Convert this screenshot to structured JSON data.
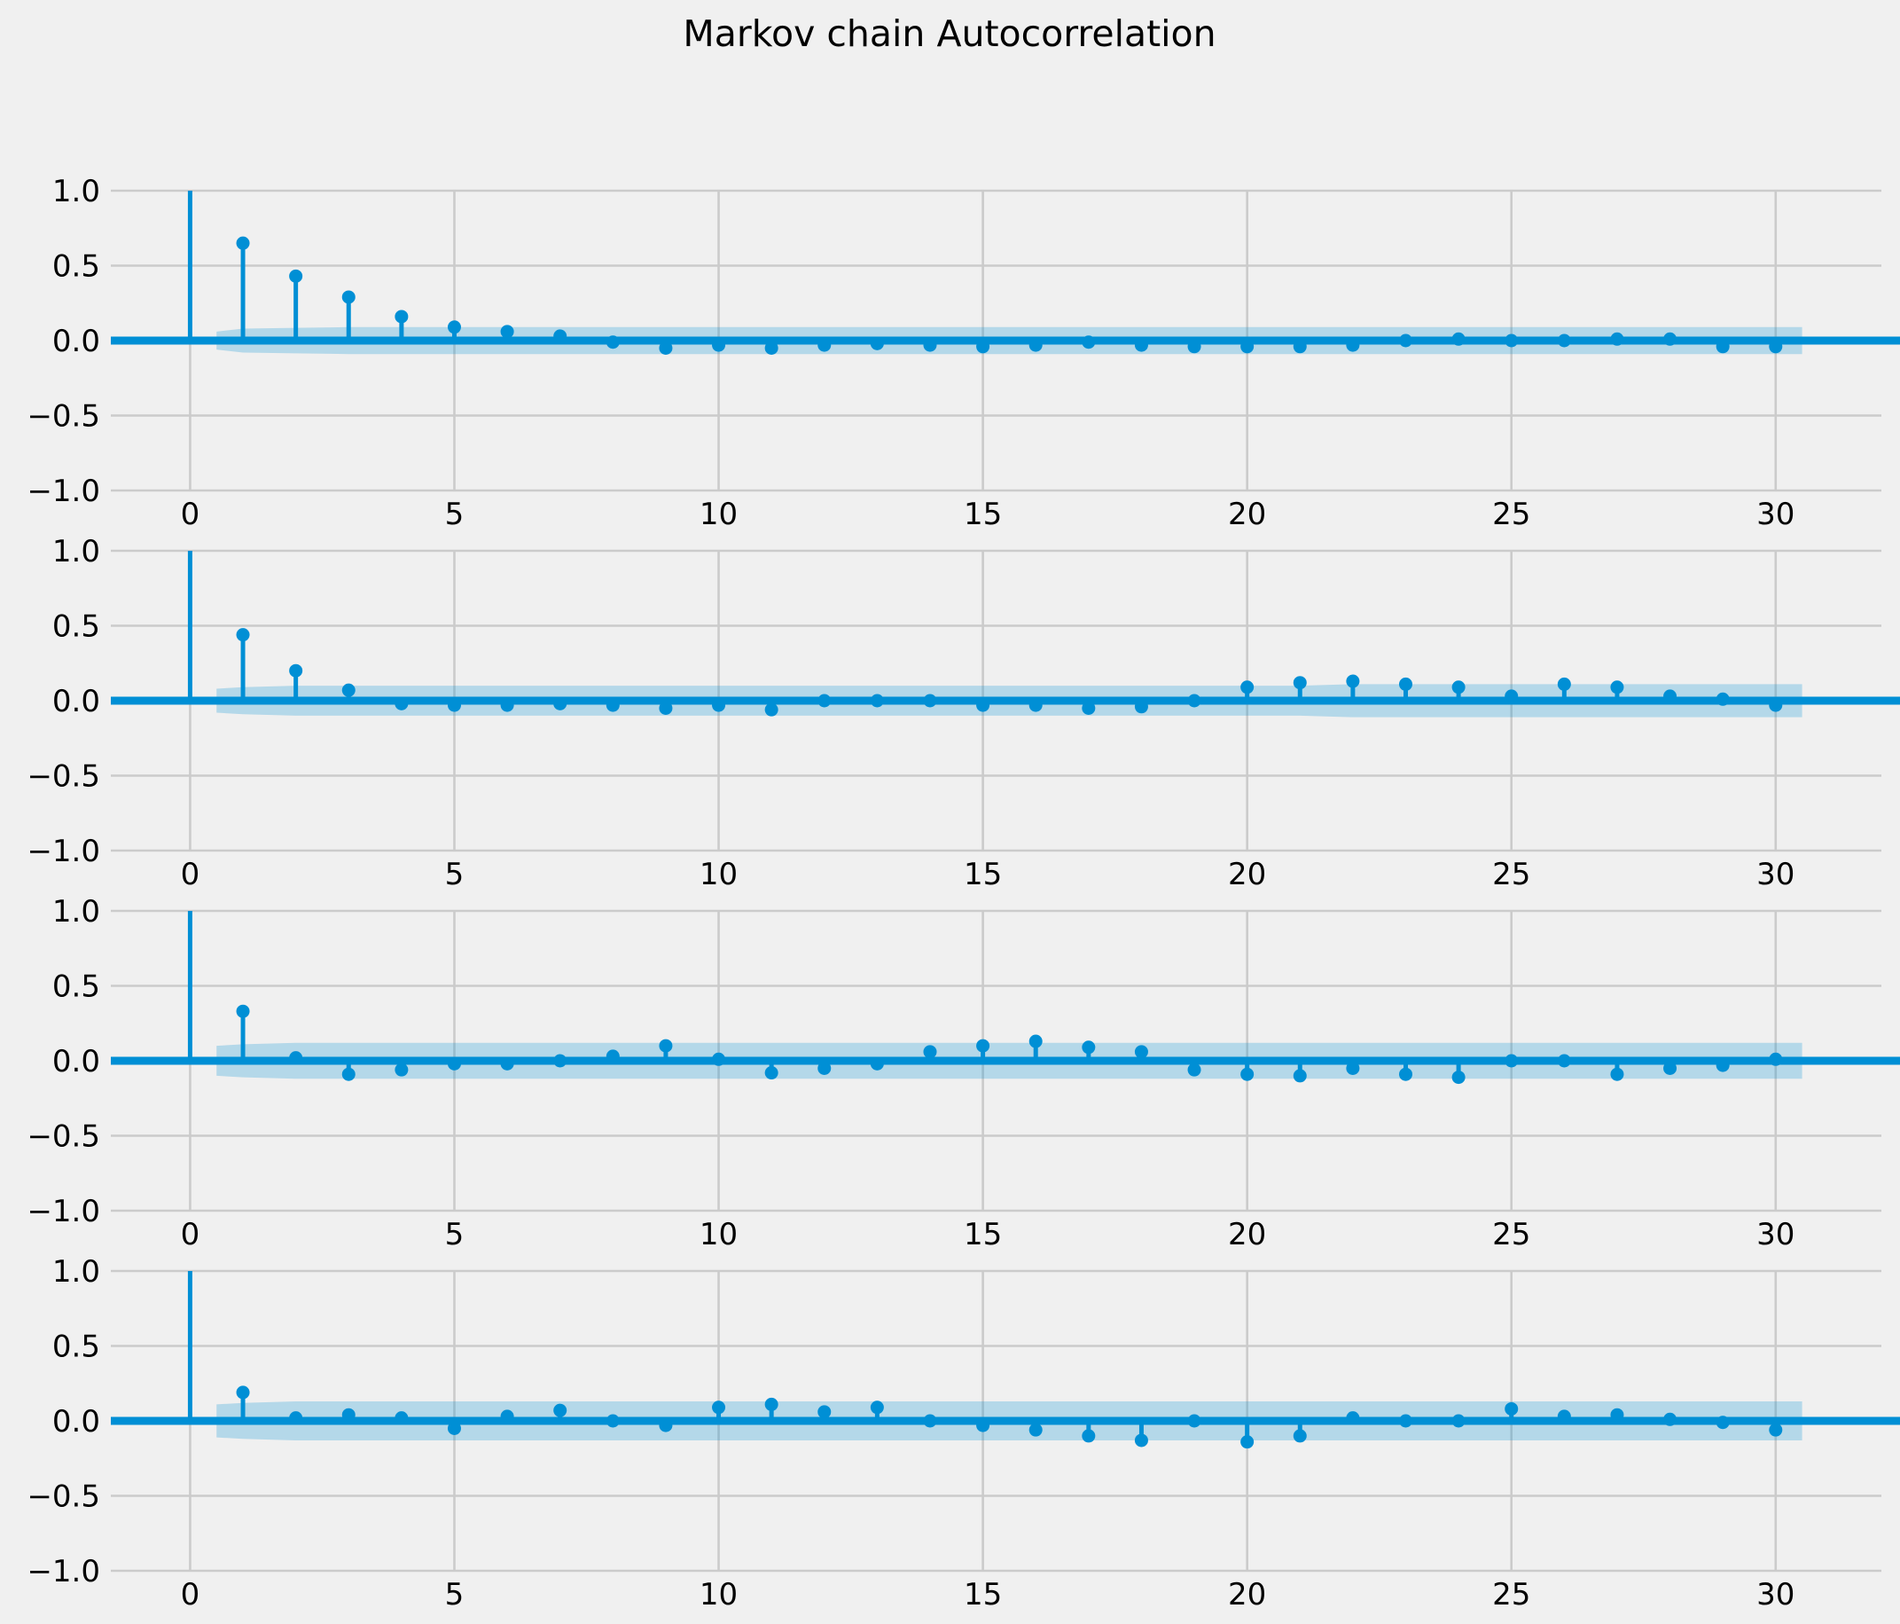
{
  "figure": {
    "title": "Markov chain Autocorrelation",
    "background": "#f0f0f0",
    "accent": "#008fd5"
  },
  "chart_data": [
    {
      "type": "stem",
      "xlim": [
        -1.5,
        32
      ],
      "ylim": [
        -1,
        1
      ],
      "xticks": [
        "0",
        "5",
        "10",
        "15",
        "20",
        "25",
        "30"
      ],
      "yticks": [
        "1.0",
        "0.5",
        "0.0",
        "−0.5",
        "−1.0"
      ],
      "grid": true,
      "lags": [
        0,
        1,
        2,
        3,
        4,
        5,
        6,
        7,
        8,
        9,
        10,
        11,
        12,
        13,
        14,
        15,
        16,
        17,
        18,
        19,
        20,
        21,
        22,
        23,
        24,
        25,
        26,
        27,
        28,
        29,
        30
      ],
      "values": [
        1.0,
        0.65,
        0.43,
        0.29,
        0.16,
        0.09,
        0.06,
        0.03,
        -0.01,
        -0.05,
        -0.03,
        -0.05,
        -0.03,
        -0.02,
        -0.03,
        -0.04,
        -0.03,
        -0.01,
        -0.03,
        -0.04,
        -0.04,
        -0.04,
        -0.03,
        0.0,
        0.01,
        0.0,
        0.0,
        0.01,
        0.01,
        -0.04,
        -0.04
      ],
      "confidence": [
        0.06,
        0.08,
        0.085,
        0.09,
        0.09,
        0.09,
        0.09,
        0.09,
        0.09,
        0.09,
        0.09,
        0.09,
        0.09,
        0.09,
        0.09,
        0.09,
        0.09,
        0.09,
        0.09,
        0.09,
        0.09,
        0.09,
        0.09,
        0.09,
        0.09,
        0.09,
        0.09,
        0.09,
        0.09,
        0.09,
        0.09
      ]
    },
    {
      "type": "stem",
      "xlim": [
        -1.5,
        32
      ],
      "ylim": [
        -1,
        1
      ],
      "xticks": [
        "0",
        "5",
        "10",
        "15",
        "20",
        "25",
        "30"
      ],
      "yticks": [
        "1.0",
        "0.5",
        "0.0",
        "−0.5",
        "−1.0"
      ],
      "grid": true,
      "lags": [
        0,
        1,
        2,
        3,
        4,
        5,
        6,
        7,
        8,
        9,
        10,
        11,
        12,
        13,
        14,
        15,
        16,
        17,
        18,
        19,
        20,
        21,
        22,
        23,
        24,
        25,
        26,
        27,
        28,
        29,
        30
      ],
      "values": [
        1.0,
        0.44,
        0.2,
        0.07,
        -0.02,
        -0.03,
        -0.03,
        -0.02,
        -0.03,
        -0.05,
        -0.03,
        -0.06,
        0.0,
        0.0,
        0.0,
        -0.03,
        -0.03,
        -0.05,
        -0.04,
        0.0,
        0.09,
        0.12,
        0.13,
        0.11,
        0.09,
        0.03,
        0.11,
        0.09,
        0.03,
        0.01,
        -0.03
      ],
      "confidence": [
        0.08,
        0.09,
        0.1,
        0.1,
        0.1,
        0.1,
        0.1,
        0.1,
        0.1,
        0.1,
        0.1,
        0.1,
        0.1,
        0.1,
        0.1,
        0.1,
        0.1,
        0.1,
        0.1,
        0.1,
        0.1,
        0.1,
        0.11,
        0.11,
        0.11,
        0.11,
        0.11,
        0.11,
        0.11,
        0.11,
        0.11
      ]
    },
    {
      "type": "stem",
      "xlim": [
        -1.5,
        32
      ],
      "ylim": [
        -1,
        1
      ],
      "xticks": [
        "0",
        "5",
        "10",
        "15",
        "20",
        "25",
        "30"
      ],
      "yticks": [
        "1.0",
        "0.5",
        "0.0",
        "−0.5",
        "−1.0"
      ],
      "grid": true,
      "lags": [
        0,
        1,
        2,
        3,
        4,
        5,
        6,
        7,
        8,
        9,
        10,
        11,
        12,
        13,
        14,
        15,
        16,
        17,
        18,
        19,
        20,
        21,
        22,
        23,
        24,
        25,
        26,
        27,
        28,
        29,
        30
      ],
      "values": [
        1.0,
        0.33,
        0.02,
        -0.09,
        -0.06,
        -0.02,
        -0.02,
        0.0,
        0.03,
        0.1,
        0.01,
        -0.08,
        -0.05,
        -0.02,
        0.06,
        0.1,
        0.13,
        0.09,
        0.06,
        -0.06,
        -0.09,
        -0.1,
        -0.05,
        -0.09,
        -0.11,
        0.0,
        0.0,
        -0.09,
        -0.05,
        -0.03,
        0.01
      ],
      "confidence": [
        0.1,
        0.11,
        0.12,
        0.12,
        0.12,
        0.12,
        0.12,
        0.12,
        0.12,
        0.12,
        0.12,
        0.12,
        0.12,
        0.12,
        0.12,
        0.12,
        0.12,
        0.12,
        0.12,
        0.12,
        0.12,
        0.12,
        0.12,
        0.12,
        0.12,
        0.12,
        0.12,
        0.12,
        0.12,
        0.12,
        0.12
      ]
    },
    {
      "type": "stem",
      "xlim": [
        -1.5,
        32
      ],
      "ylim": [
        -1,
        1
      ],
      "xticks": [
        "0",
        "5",
        "10",
        "15",
        "20",
        "25",
        "30"
      ],
      "yticks": [
        "1.0",
        "0.5",
        "0.0",
        "−0.5",
        "−1.0"
      ],
      "grid": true,
      "lags": [
        0,
        1,
        2,
        3,
        4,
        5,
        6,
        7,
        8,
        9,
        10,
        11,
        12,
        13,
        14,
        15,
        16,
        17,
        18,
        19,
        20,
        21,
        22,
        23,
        24,
        25,
        26,
        27,
        28,
        29,
        30
      ],
      "values": [
        1.0,
        0.19,
        0.02,
        0.04,
        0.02,
        -0.05,
        0.03,
        0.07,
        0.0,
        -0.03,
        0.09,
        0.11,
        0.06,
        0.09,
        0.0,
        -0.03,
        -0.06,
        -0.1,
        -0.13,
        0.0,
        -0.14,
        -0.1,
        0.02,
        0.0,
        0.0,
        0.08,
        0.03,
        0.04,
        0.01,
        -0.01,
        -0.06
      ],
      "confidence": [
        0.11,
        0.12,
        0.13,
        0.13,
        0.13,
        0.13,
        0.13,
        0.13,
        0.13,
        0.13,
        0.13,
        0.13,
        0.13,
        0.13,
        0.13,
        0.13,
        0.13,
        0.13,
        0.13,
        0.13,
        0.13,
        0.13,
        0.13,
        0.13,
        0.13,
        0.13,
        0.13,
        0.13,
        0.13,
        0.13,
        0.13
      ]
    }
  ]
}
